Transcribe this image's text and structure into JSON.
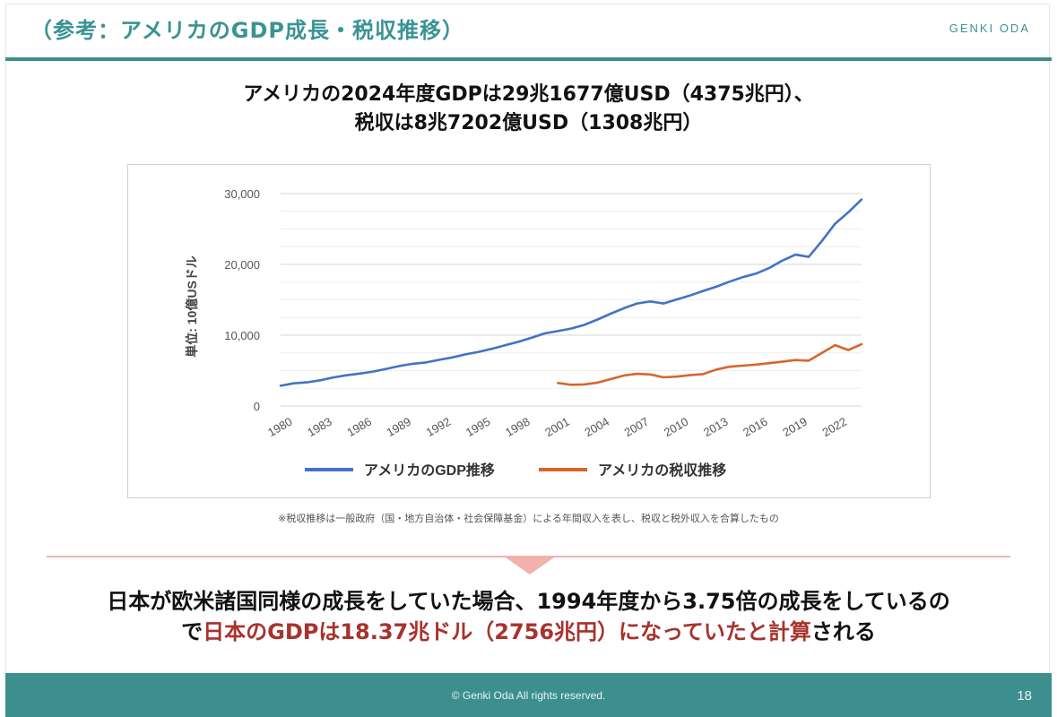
{
  "header": {
    "title": "（参考：アメリカのGDP成長・税収推移）",
    "brand": "GENKI ODA"
  },
  "headline": {
    "line1": "アメリカの2024年度GDPは29兆1677億USD（4375兆円）、",
    "line2": "税収は8兆7202億USD（1308兆円）"
  },
  "chart_data": {
    "type": "line",
    "ylabel": "単位: 10億USドル",
    "ylim": [
      0,
      30000
    ],
    "y_ticks": [
      "30,000",
      "20,000",
      "10,000",
      "0"
    ],
    "y_tick_values": [
      30000,
      20000,
      10000,
      0
    ],
    "x_ticks": [
      "1980",
      "1983",
      "1986",
      "1989",
      "1992",
      "1995",
      "1998",
      "2001",
      "2004",
      "2007",
      "2010",
      "2013",
      "2016",
      "2019",
      "2022"
    ],
    "grid": true,
    "legend_position": "bottom",
    "colors": {
      "gdp": "#4472c4",
      "tax": "#d9652b"
    },
    "series": [
      {
        "name": "アメリカのGDP推移",
        "x": [
          1980,
          1981,
          1982,
          1983,
          1984,
          1985,
          1986,
          1987,
          1988,
          1989,
          1990,
          1991,
          1992,
          1993,
          1994,
          1995,
          1996,
          1997,
          1998,
          1999,
          2000,
          2001,
          2002,
          2003,
          2004,
          2005,
          2006,
          2007,
          2008,
          2009,
          2010,
          2011,
          2012,
          2013,
          2014,
          2015,
          2016,
          2017,
          2018,
          2019,
          2020,
          2021,
          2022,
          2023,
          2024
        ],
        "values": [
          2857,
          3207,
          3343,
          3634,
          4037,
          4339,
          4580,
          4855,
          5236,
          5642,
          5963,
          6158,
          6520,
          6859,
          7287,
          7640,
          8073,
          8578,
          9063,
          9631,
          10251,
          10582,
          10936,
          11458,
          12214,
          13037,
          13815,
          14475,
          14770,
          14478,
          15049,
          15600,
          16254,
          16843,
          17551,
          18206,
          18695,
          19477,
          20533,
          21381,
          21060,
          23315,
          25744,
          27361,
          29168
        ]
      },
      {
        "name": "アメリカの税収推移",
        "x": [
          2001,
          2002,
          2003,
          2004,
          2005,
          2006,
          2007,
          2008,
          2009,
          2010,
          2011,
          2012,
          2013,
          2014,
          2015,
          2016,
          2017,
          2018,
          2019,
          2020,
          2021,
          2022,
          2023,
          2024
        ],
        "values": [
          3250,
          3000,
          3050,
          3300,
          3800,
          4300,
          4550,
          4450,
          4050,
          4150,
          4350,
          4500,
          5150,
          5550,
          5700,
          5850,
          6050,
          6250,
          6500,
          6400,
          7500,
          8600,
          7900,
          8720
        ]
      }
    ]
  },
  "footnote": "※税収推移は一般政府（国・地方自治体・社会保障基金）による年間収入を表し、税収と税外収入を合算したもの",
  "conclusion": {
    "line1": "日本が欧米諸国同様の成長をしていた場合、1994年度から3.75倍の成長をしているの",
    "line2_pre": "で",
    "line2_red": "日本のGDPは18.37兆ドル（2756兆円）になっていたと計算",
    "line2_post": "される"
  },
  "footer": {
    "copyright": "© Genki Oda All rights reserved.",
    "page_number": "18"
  }
}
